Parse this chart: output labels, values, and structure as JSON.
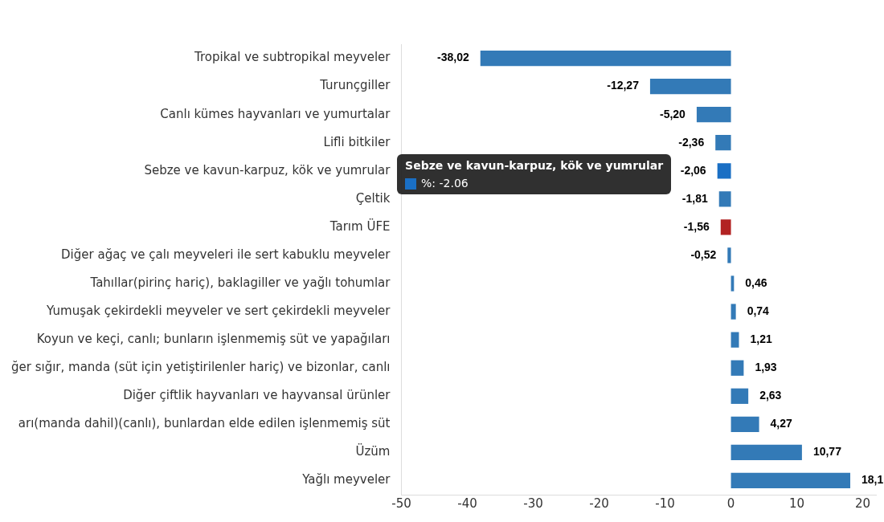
{
  "chart_data": {
    "type": "bar",
    "orientation": "horizontal",
    "categories": [
      "Tropikal ve subtropikal meyveler",
      "Turunçgiller",
      "Canlı kümes hayvanları ve yumurtalar",
      "Lifli bitkiler",
      "Sebze ve kavun-karpuz, kök ve yumrular",
      "Çeltik",
      "Tarım ÜFE",
      "Diğer ağaç ve çalı meyveleri ile sert kabuklu meyveler",
      "Tahıllar(pirinç hariç), baklagiller ve yağlı tohumlar",
      "Yumuşak çekirdekli meyveler ve sert çekirdekli meyveler",
      "Koyun ve keçi, canlı; bunların işlenmemiş süt ve yapağıları",
      "ğer sığır, manda (süt için yetiştirilenler hariç) ve bizonlar, canlı",
      "Diğer çiftlik hayvanları ve hayvansal ürünler",
      "arı(manda dahil)(canlı), bunlardan elde edilen işlenmemiş süt",
      "Üzüm",
      "Yağlı meyveler"
    ],
    "series": [
      {
        "values": [
          -38.02,
          -12.27,
          -5.2,
          -2.36,
          -2.06,
          -1.81,
          -1.56,
          -0.52,
          0.46,
          0.74,
          1.21,
          1.93,
          2.63,
          4.27,
          10.77,
          18.1
        ],
        "colors": [
          "#337ab7",
          "#337ab7",
          "#337ab7",
          "#337ab7",
          "#1a6fc4",
          "#337ab7",
          "#b22222",
          "#337ab7",
          "#337ab7",
          "#337ab7",
          "#337ab7",
          "#337ab7",
          "#337ab7",
          "#337ab7",
          "#337ab7",
          "#337ab7"
        ],
        "value_labels": [
          "-38,02",
          "-12,27",
          "-5,20",
          "-2,36",
          "-2,06",
          "-1,81",
          "-1,56",
          "-0,52",
          "0,46",
          "0,74",
          "1,21",
          "1,93",
          "2,63",
          "4,27",
          "10,77",
          "18,1"
        ]
      }
    ],
    "xlim": [
      -50,
      22
    ],
    "xticks": [
      -50,
      -40,
      -30,
      -20,
      -10,
      0,
      10,
      20
    ],
    "grid": false,
    "legend": false,
    "annotations": [
      "Sebze ve kavun-karpuz, kök ve yumrular",
      "%: -2.06"
    ]
  }
}
